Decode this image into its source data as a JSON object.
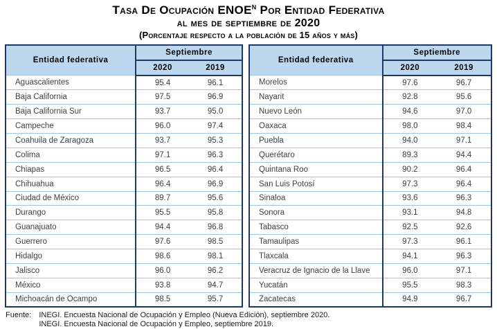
{
  "title": {
    "line1_prefix": "Tasa De Ocupación ENOE",
    "line1_superscript": "N",
    "line1_suffix": " Por Entidad Federativa",
    "line2": "al mes de septiembre de 2020",
    "line3": "(Porcentaje respecto a la población de 15 años y más)"
  },
  "table_header": {
    "entity": "Entidad federativa",
    "period": "Septiembre",
    "col_2020": "2020",
    "col_2019": "2019"
  },
  "left_table": {
    "rows": [
      {
        "entity": "Aguascalientes",
        "v2020": "95.4",
        "v2019": "96.1"
      },
      {
        "entity": "Baja California",
        "v2020": "97.5",
        "v2019": "96.9"
      },
      {
        "entity": "Baja California Sur",
        "v2020": "93.7",
        "v2019": "95.0"
      },
      {
        "entity": "Campeche",
        "v2020": "96.0",
        "v2019": "97.4"
      },
      {
        "entity": "Coahuila de Zaragoza",
        "v2020": "93.7",
        "v2019": "95.3"
      },
      {
        "entity": "Colima",
        "v2020": "97.1",
        "v2019": "96.3"
      },
      {
        "entity": "Chiapas",
        "v2020": "96.5",
        "v2019": "96.4"
      },
      {
        "entity": "Chihuahua",
        "v2020": "96.4",
        "v2019": "96.9"
      },
      {
        "entity": "Ciudad de México",
        "v2020": "89.7",
        "v2019": "95.6"
      },
      {
        "entity": "Durango",
        "v2020": "95.5",
        "v2019": "95.8"
      },
      {
        "entity": "Guanajuato",
        "v2020": "94.4",
        "v2019": "96.8"
      },
      {
        "entity": "Guerrero",
        "v2020": "97.6",
        "v2019": "98.5"
      },
      {
        "entity": "Hidalgo",
        "v2020": "98.6",
        "v2019": "98.1"
      },
      {
        "entity": "Jalisco",
        "v2020": "96.0",
        "v2019": "96.2"
      },
      {
        "entity": "México",
        "v2020": "93.8",
        "v2019": "94.7"
      },
      {
        "entity": "Michoacán de Ocampo",
        "v2020": "98.5",
        "v2019": "95.7"
      }
    ]
  },
  "right_table": {
    "rows": [
      {
        "entity": "Morelos",
        "v2020": "97.6",
        "v2019": "96.7"
      },
      {
        "entity": "Nayarit",
        "v2020": "92.8",
        "v2019": "95.6"
      },
      {
        "entity": "Nuevo León",
        "v2020": "94.6",
        "v2019": "97.0"
      },
      {
        "entity": "Oaxaca",
        "v2020": "98.0",
        "v2019": "98.4"
      },
      {
        "entity": "Puebla",
        "v2020": "94.0",
        "v2019": "97.1"
      },
      {
        "entity": "Querétaro",
        "v2020": "89.3",
        "v2019": "94.4"
      },
      {
        "entity": "Quintana Roo",
        "v2020": "90.2",
        "v2019": "96.4"
      },
      {
        "entity": "San Luis Potosí",
        "v2020": "97.3",
        "v2019": "96.4"
      },
      {
        "entity": "Sinaloa",
        "v2020": "93.6",
        "v2019": "96.3"
      },
      {
        "entity": "Sonora",
        "v2020": "93.1",
        "v2019": "94.8"
      },
      {
        "entity": "Tabasco",
        "v2020": "92.5",
        "v2019": "92.6"
      },
      {
        "entity": "Tamaulipas",
        "v2020": "97.3",
        "v2019": "96.1"
      },
      {
        "entity": "Tlaxcala",
        "v2020": "94.1",
        "v2019": "96.3"
      },
      {
        "entity": "Veracruz de Ignacio de la Llave",
        "v2020": "96.0",
        "v2019": "97.1"
      },
      {
        "entity": "Yucatán",
        "v2020": "95.5",
        "v2019": "98.3"
      },
      {
        "entity": "Zacatecas",
        "v2020": "94.9",
        "v2019": "96.7"
      }
    ]
  },
  "footer": {
    "label": "Fuente:",
    "line1": "INEGI. Encuesta Nacional de Ocupación y Empleo (Nueva Edición), septiembre 2020.",
    "line2": "INEGI. Encuesta Nacional de Ocupación y Empleo, septiembre 2019."
  },
  "colors": {
    "header_bg": "#BDD7EE",
    "border_dark": "#1F3864",
    "row_separator": "#9DC3E6",
    "body_text": "#3F3F3F"
  }
}
